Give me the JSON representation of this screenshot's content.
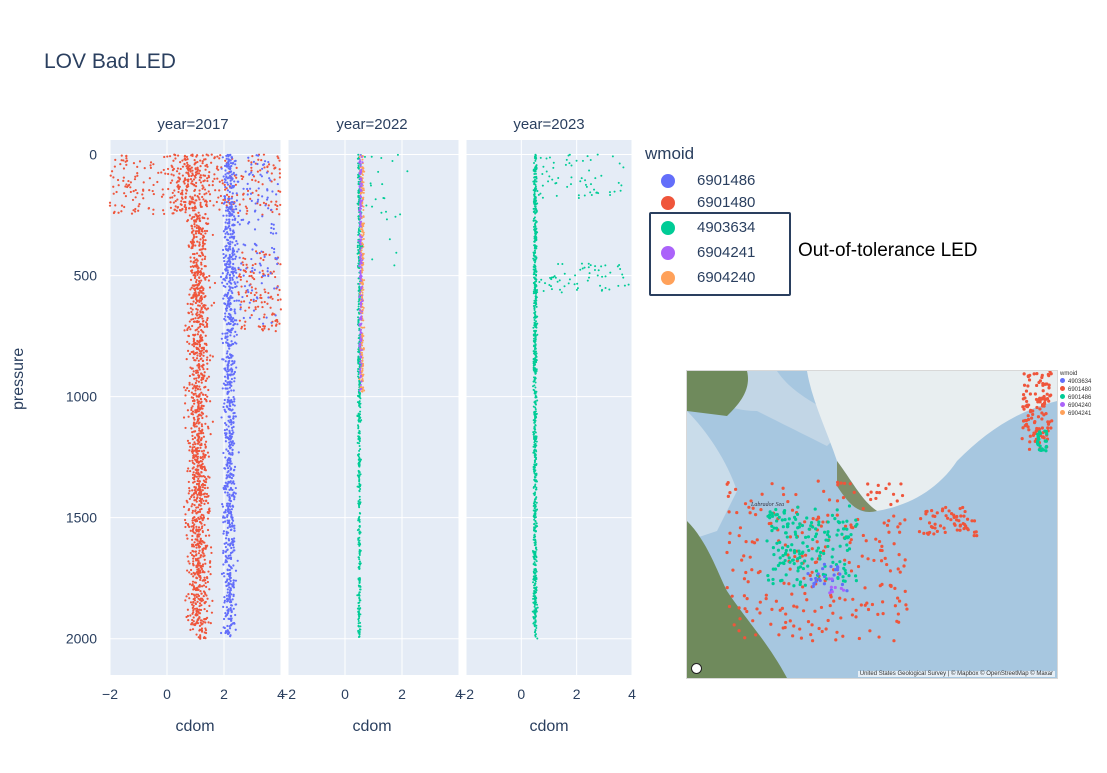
{
  "chart_data": {
    "type": "scatter",
    "title": "LOV Bad LED",
    "ylabel": "pressure",
    "y_ticks": [
      0,
      500,
      1000,
      1500,
      2000
    ],
    "ylim": [
      2150,
      -60
    ],
    "x_ticks": [
      -2,
      0,
      2,
      4
    ],
    "x_tick_labels": [
      "−2",
      "0",
      "2",
      "4"
    ],
    "xlim": [
      -2,
      4
    ],
    "panels": [
      {
        "title": "year=2017",
        "xlabel": "cdom"
      },
      {
        "title": "year=2022",
        "xlabel": "cdom"
      },
      {
        "title": "year=2023",
        "xlabel": "cdom"
      }
    ],
    "legend_title": "wmoid",
    "legend_placement": "right",
    "series": [
      {
        "name": "6901486",
        "color": "#636efa",
        "panel": "year=2017",
        "cdom_center": 2.2,
        "pressure_range": [
          0,
          2000
        ]
      },
      {
        "name": "6901480",
        "color": "#ef553b",
        "panel": "year=2017",
        "cdom_center": 1.0,
        "pressure_range": [
          0,
          2000
        ]
      },
      {
        "name": "4903634",
        "color": "#00cc96",
        "panel": "year=2022 / year=2023",
        "cdom_center": 0.5,
        "pressure_range": [
          0,
          2000
        ]
      },
      {
        "name": "6904241",
        "color": "#ab63fa",
        "panel": "year=2022",
        "cdom_center": 0.55,
        "pressure_range": [
          0,
          1000
        ]
      },
      {
        "name": "6904240",
        "color": "#ffa15a",
        "panel": "year=2022",
        "cdom_center": 0.6,
        "pressure_range": [
          0,
          1000
        ]
      }
    ],
    "annotation": "Out-of-tolerance LED",
    "highlighted_series": [
      "4903634",
      "6904241",
      "6904240"
    ]
  },
  "inset_map": {
    "legend_title": "wmoid",
    "legend": [
      {
        "name": "4903634",
        "color": "#636efa"
      },
      {
        "name": "6901480",
        "color": "#ef553b"
      },
      {
        "name": "6901486",
        "color": "#00cc96"
      },
      {
        "name": "6904240",
        "color": "#ab63fa"
      },
      {
        "name": "6904241",
        "color": "#ffa15a"
      }
    ],
    "sea_label": "Labrador Sea",
    "attribution": "United States Geological Survey | © Mapbox © OpenStreetMap © Maxar"
  }
}
